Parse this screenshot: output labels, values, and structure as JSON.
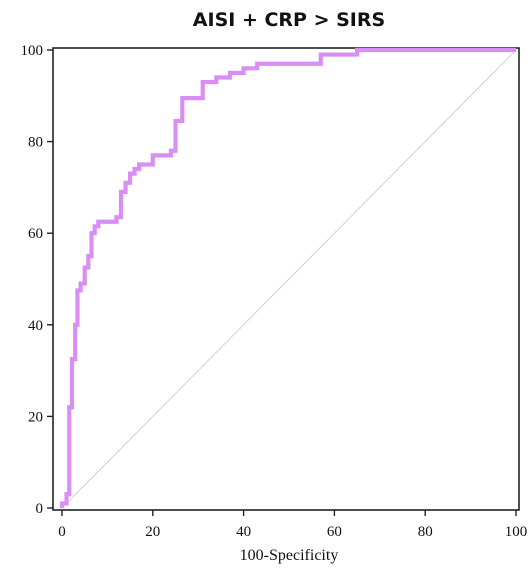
{
  "chart_data": {
    "type": "line",
    "title": "AISI + CRP > SIRS",
    "xlabel": "100-Specificity",
    "ylabel": "",
    "xlim": [
      0,
      100
    ],
    "ylim": [
      0,
      100
    ],
    "x_ticks": [
      0,
      20,
      40,
      60,
      80,
      100
    ],
    "y_ticks": [
      0,
      20,
      40,
      60,
      80,
      100
    ],
    "grid": false,
    "series": [
      {
        "color": "#d98ef5",
        "x": [
          0,
          0,
          1,
          1,
          1.6,
          1.6,
          2.2,
          2.2,
          2.9,
          2.9,
          3.4,
          3.4,
          4.1,
          4.1,
          5,
          5,
          5.8,
          5.8,
          6.5,
          6.5,
          7.2,
          7.2,
          8,
          8,
          12,
          12,
          13,
          13,
          14,
          14,
          15,
          15,
          16,
          16,
          17,
          17,
          18,
          18,
          20,
          20,
          24,
          24,
          25,
          25,
          26.5,
          26.5,
          31,
          31,
          34,
          34,
          37,
          37,
          40,
          40,
          43,
          43,
          57,
          57,
          65,
          65,
          100
        ],
        "y": [
          0,
          1,
          1,
          3,
          3,
          22,
          22,
          32.5,
          32.5,
          40,
          40,
          47.5,
          47.5,
          49,
          49,
          52.5,
          52.5,
          55,
          55,
          60,
          60,
          61.5,
          61.5,
          62.5,
          62.5,
          63.5,
          63.5,
          69,
          69,
          71,
          71,
          73,
          73,
          74,
          74,
          75,
          75,
          75,
          75,
          77,
          77,
          78,
          78,
          84.5,
          84.5,
          89.5,
          89.5,
          93,
          93,
          94,
          94,
          95,
          95,
          96,
          96,
          97,
          97,
          99,
          99,
          100,
          100
        ]
      },
      {
        "color": "#d0d0d0",
        "x": [
          0,
          100
        ],
        "y": [
          0,
          100
        ]
      }
    ]
  }
}
